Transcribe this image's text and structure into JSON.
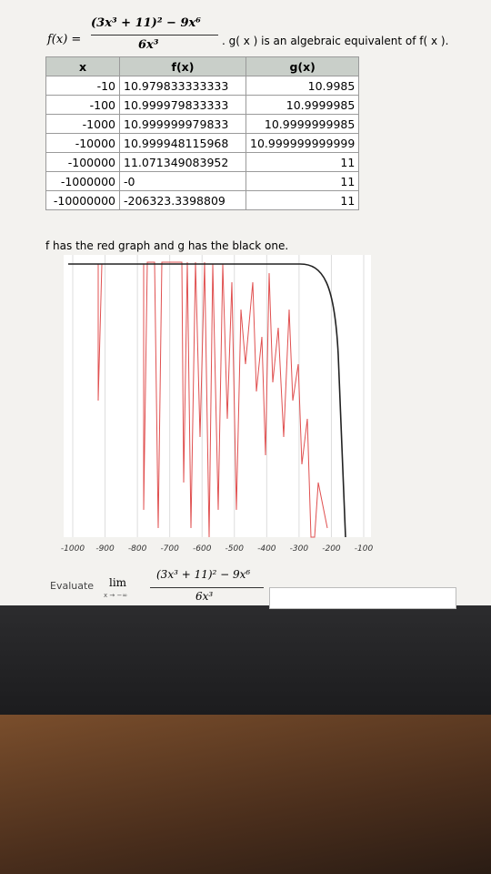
{
  "header": {
    "function_label": "f(x) =",
    "numerator": "(3x³ + 11)² − 9x⁶",
    "denominator": "6x³",
    "note": ". g( x ) is an algebraic equivalent of f( x )."
  },
  "table": {
    "columns": [
      "x",
      "f(x)",
      "g(x)"
    ],
    "rows": [
      [
        "-10",
        "10.979833333333",
        "10.9985"
      ],
      [
        "-100",
        "10.999979833333",
        "10.9999985"
      ],
      [
        "-1000",
        "10.999999979833",
        "10.9999999985"
      ],
      [
        "-10000",
        "10.999948115968",
        "10.999999999999"
      ],
      [
        "-100000",
        "11.071349083952",
        "11"
      ],
      [
        "-1000000",
        "-0",
        "11"
      ],
      [
        "-10000000",
        "-206323.3398809",
        "11"
      ]
    ]
  },
  "caption": "f has the red graph and g has the black one.",
  "graph": {
    "x_tick_labels": [
      "-1000",
      "-900",
      "-800",
      "-700",
      "-600",
      "-500",
      "-400",
      "-300",
      "-200",
      "-100"
    ]
  },
  "question": {
    "prefix": "Evaluate",
    "limit": "lim",
    "limit_sub": "x → −∞",
    "numerator": "(3x³ + 11)² − 9x⁶",
    "denominator": "6x³"
  }
}
